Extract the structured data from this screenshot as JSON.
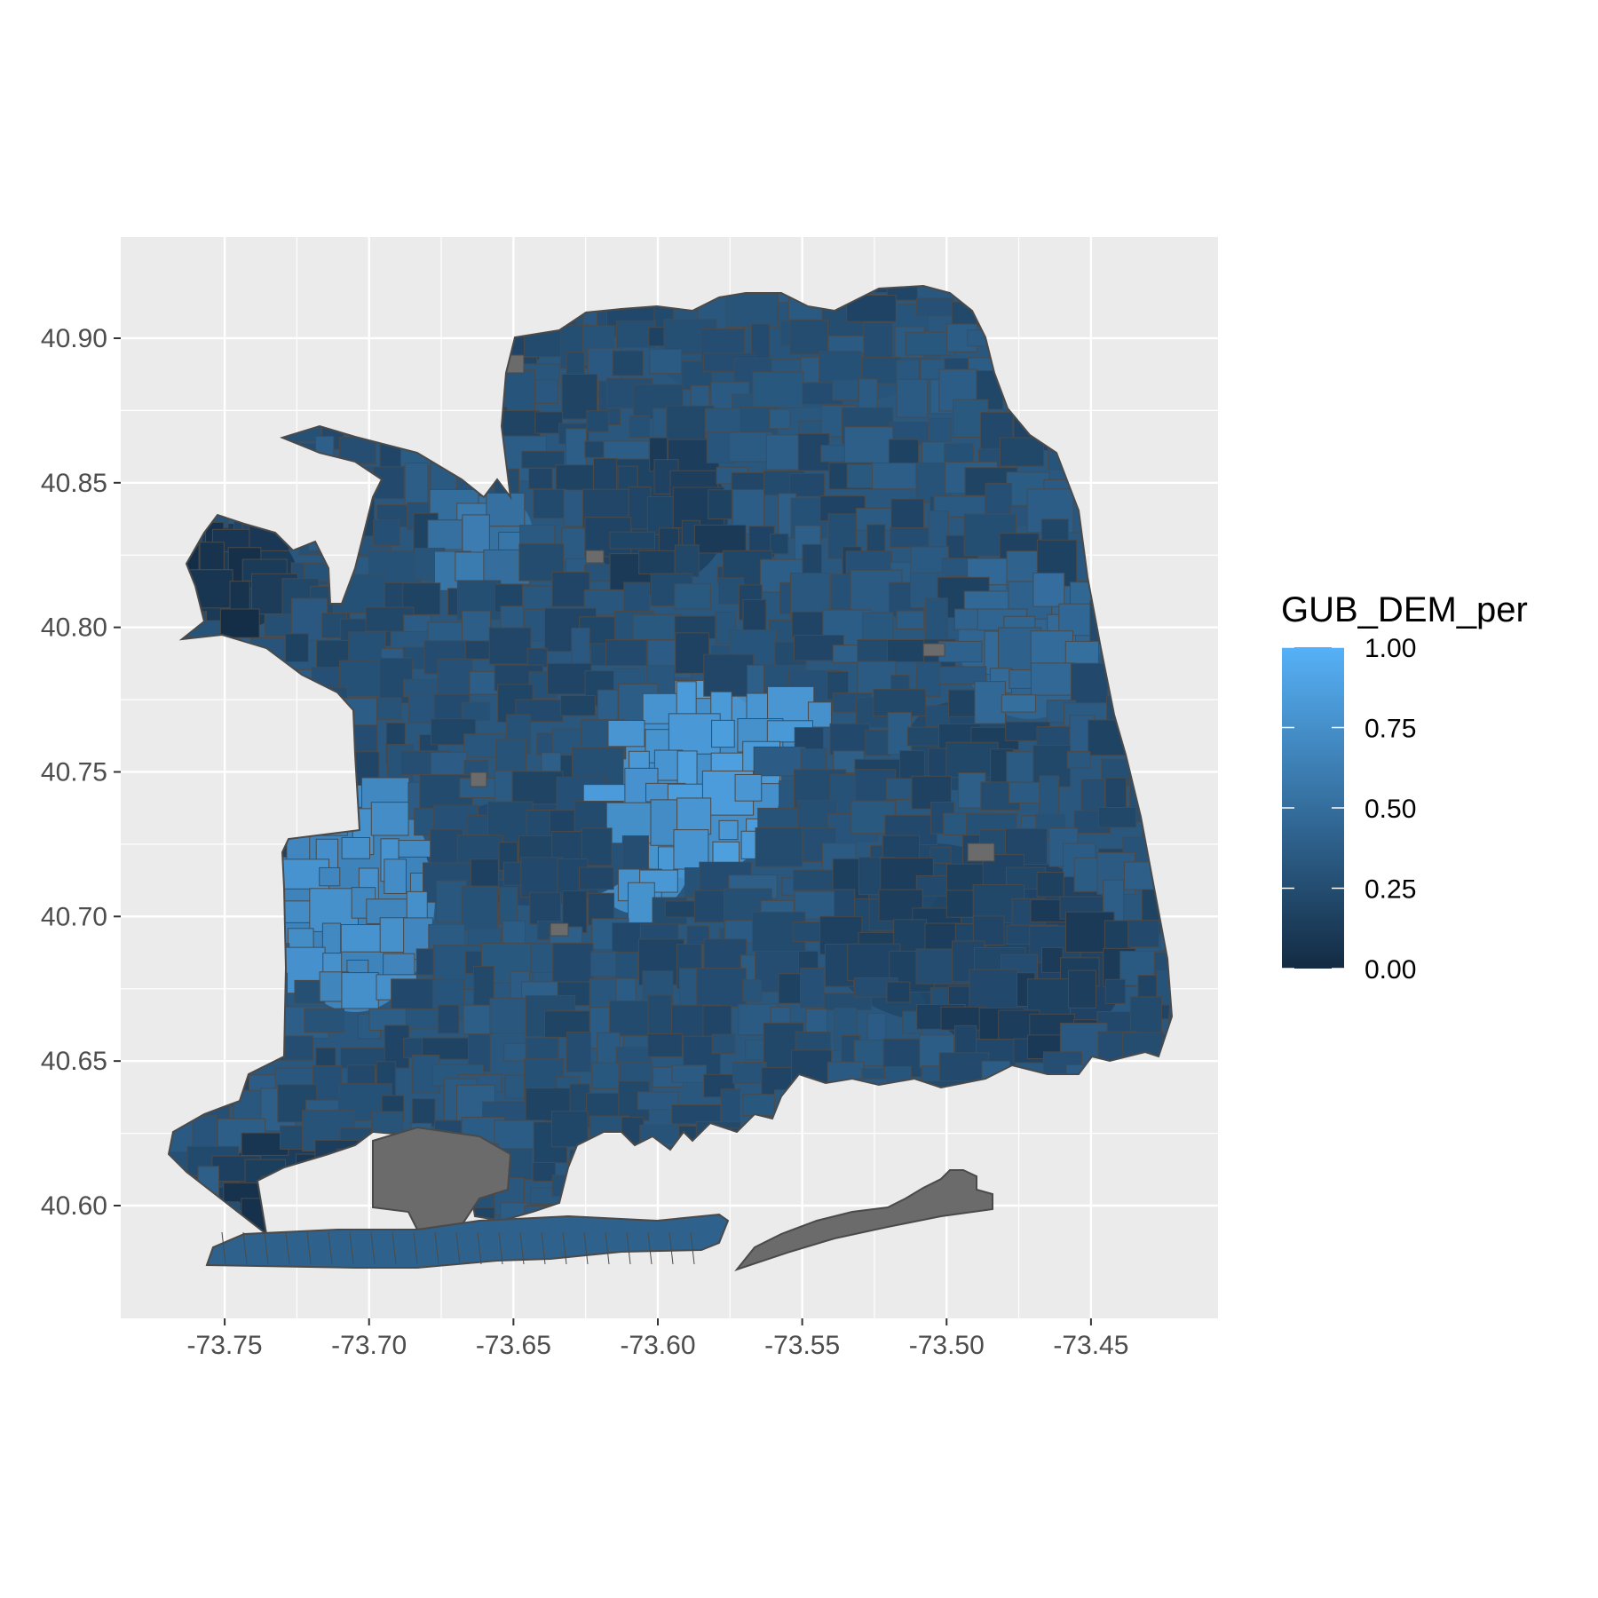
{
  "chart_data": {
    "type": "choropleth-map",
    "fill_variable": "GUB_DEM_per",
    "legend": {
      "title": "GUB_DEM_per",
      "placement": "right",
      "breaks": [
        "1.00",
        "0.75",
        "0.50",
        "0.25",
        "0.00"
      ],
      "break_values": [
        1.0,
        0.75,
        0.5,
        0.25,
        0.0
      ],
      "scale_low_color": "#132B43",
      "scale_high_color": "#56B1F7",
      "na_color": "#6b6b6b"
    },
    "x_axis": {
      "label": "",
      "ticks": [
        "-73.75",
        "-73.70",
        "-73.65",
        "-73.60",
        "-73.55",
        "-73.50",
        "-73.45"
      ],
      "tick_values": [
        -73.75,
        -73.7,
        -73.65,
        -73.6,
        -73.55,
        -73.5,
        -73.45
      ],
      "range": [
        -73.786,
        -73.406
      ]
    },
    "y_axis": {
      "label": "",
      "ticks": [
        "40.60",
        "40.65",
        "40.70",
        "40.75",
        "40.80",
        "40.85",
        "40.90"
      ],
      "tick_values": [
        40.6,
        40.65,
        40.7,
        40.75,
        40.8,
        40.85,
        40.9
      ],
      "range": [
        40.561,
        40.935
      ]
    },
    "grid": true,
    "panel_background": "#ebebeb",
    "grid_color": "#ffffff",
    "border_color": "#4a4a4a"
  }
}
